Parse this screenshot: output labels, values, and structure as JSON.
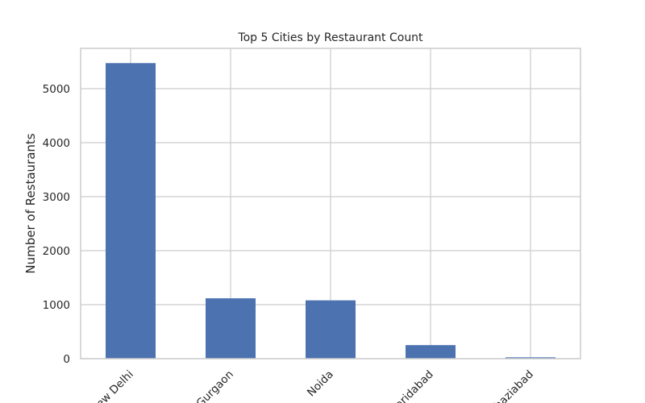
{
  "chart_data": {
    "type": "bar",
    "title": "Top 5 Cities by Restaurant Count",
    "xlabel": "",
    "ylabel": "Number of Restaurants",
    "categories": [
      "New Delhi",
      "Gurgaon",
      "Noida",
      "Faridabad",
      "Ghaziabad"
    ],
    "values": [
      5473,
      1118,
      1080,
      251,
      25
    ],
    "ylim": [
      0,
      5746
    ],
    "yticks": [
      0,
      1000,
      2000,
      3000,
      4000,
      5000
    ],
    "grid": true,
    "bar_color": "#4c72b0",
    "x_tick_rotation": -45
  }
}
